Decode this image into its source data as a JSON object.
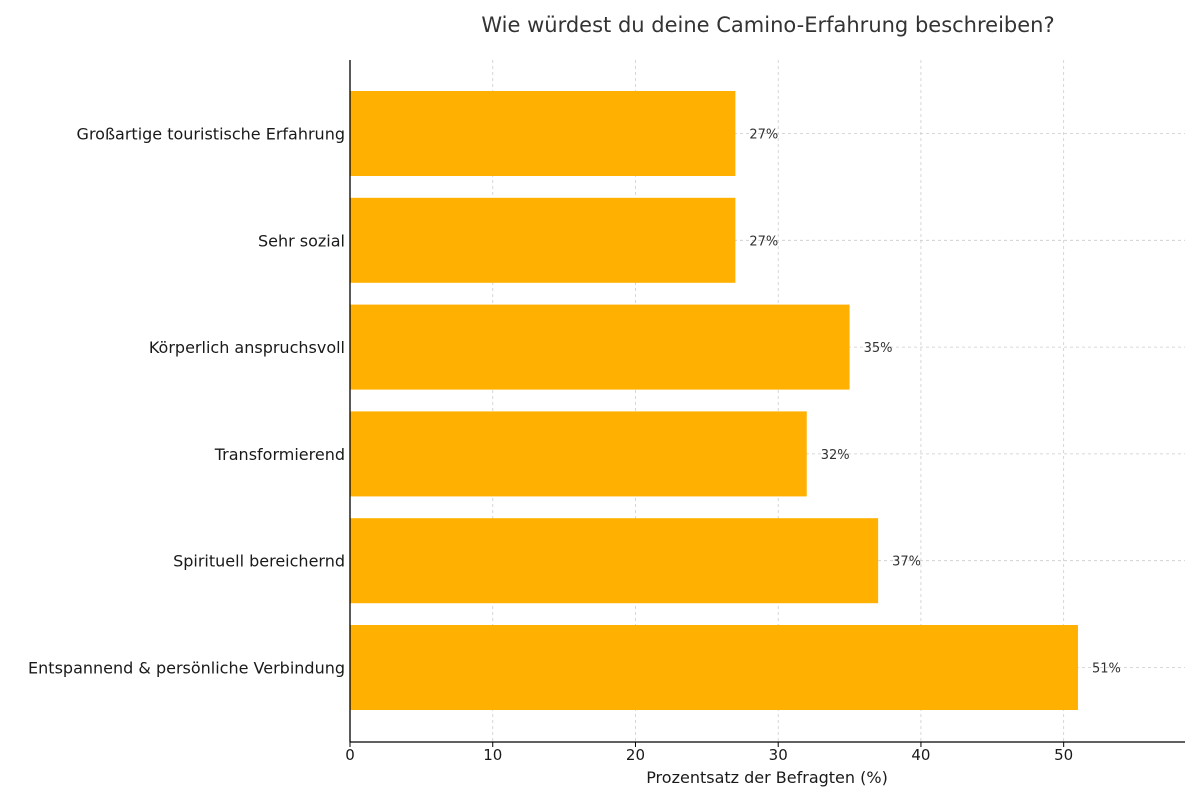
{
  "chart_data": {
    "type": "bar",
    "orientation": "horizontal",
    "title": "Wie würdest du deine Camino-Erfahrung beschreiben?",
    "xlabel": "Prozentsatz der Befragten (%)",
    "ylabel": "",
    "categories": [
      "Großartige touristische Erfahrung",
      "Sehr sozial",
      "Körperlich anspruchsvoll",
      "Transformierend",
      "Spirituell bereichernd",
      "Entspannend & persönliche Verbindung"
    ],
    "values": [
      27,
      27,
      35,
      32,
      37,
      51
    ],
    "value_labels": [
      "27%",
      "27%",
      "35%",
      "32%",
      "37%",
      "51%"
    ],
    "xlim": [
      0,
      58.5
    ],
    "xticks": [
      0,
      10,
      20,
      30,
      40,
      50
    ],
    "xtick_labels": [
      "0",
      "10",
      "20",
      "30",
      "40",
      "50"
    ],
    "grid": true,
    "bar_color": "#FFB000",
    "grid_color": "#cccccc",
    "axis_color": "#000000"
  }
}
